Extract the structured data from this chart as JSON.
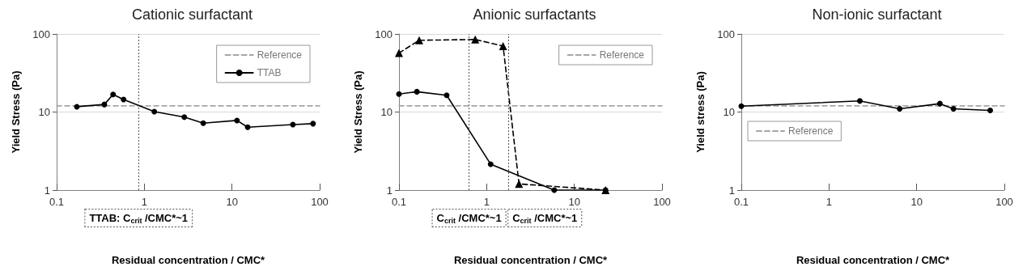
{
  "chart_data": [
    {
      "type": "line",
      "title": "Cationic surfactant",
      "xlabel": "Residual concentration / CMC*",
      "ylabel": "Yield Stress (Pa)",
      "log": "xy",
      "xlim": [
        0.1,
        100
      ],
      "xticks": [
        0.1,
        1,
        10,
        100
      ],
      "ylim": [
        1,
        100
      ],
      "yticks": [
        1,
        10,
        100
      ],
      "grid": "y",
      "legend": "top right",
      "marker": "circle",
      "line_style": "solid",
      "series": [
        {
          "name": "Reference",
          "color": "#a6a6a6",
          "x": [
            0.1,
            100
          ],
          "values": [
            12,
            12
          ],
          "line_style": "dashed",
          "marker": "none"
        },
        {
          "name": "TTAB",
          "color": "#000000",
          "x": [
            0.17,
            0.35,
            0.44,
            0.58,
            1.3,
            2.86,
            4.7,
            11.4,
            15.1,
            49.5,
            84
          ],
          "values": [
            11.7,
            12.5,
            16.8,
            14.5,
            10.1,
            8.6,
            7.2,
            7.8,
            6.4,
            6.9,
            7.1
          ]
        }
      ],
      "ref_lines": [
        {
          "axis": "x",
          "value": 0.86,
          "label": "TTAB: C$_{crit}$ /CMC*~1",
          "color": "#555555",
          "line_style": "dotted"
        }
      ]
    },
    {
      "type": "line",
      "title": "Anionic surfactants",
      "xlabel": "Residual concentration / CMC*",
      "ylabel": "Yield Stress (Pa)",
      "log": "xy",
      "xlim": [
        0.1,
        100
      ],
      "xticks": [
        0.1,
        1,
        10,
        100
      ],
      "ylim": [
        1,
        100
      ],
      "yticks": [
        1,
        10,
        100
      ],
      "grid": "y",
      "legend": "top right",
      "marker": "circle",
      "line_style": "solid",
      "series": [
        {
          "name": "Reference",
          "color": "#a6a6a6",
          "x": [
            0.1,
            100
          ],
          "values": [
            12,
            12
          ],
          "line_style": "dashed",
          "marker": "none"
        },
        {
          "color": "#000000",
          "x": [
            0.1,
            0.16,
            0.35,
            1.11,
            5.9,
            22.7
          ],
          "values": [
            17,
            18.2,
            16.4,
            2.15,
            1.0,
            1.0
          ]
        },
        {
          "color": "#000000",
          "x": [
            0.1,
            0.17,
            0.74,
            1.54,
            2.34,
            22.7
          ],
          "values": [
            57,
            83,
            85,
            70,
            1.2,
            1.0
          ],
          "line_style": "dashed",
          "marker": "triangle"
        }
      ],
      "ref_lines": [
        {
          "axis": "x",
          "value": 0.63,
          "label": "C$_{crit}$ /CMC*~1",
          "color": "#555555",
          "line_style": "dotted"
        },
        {
          "axis": "x",
          "value": 1.77,
          "label": "C$_{crit}$ /CMC*~1",
          "color": "#555555",
          "line_style": "dotted"
        }
      ]
    },
    {
      "type": "line",
      "title": "Non-ionic surfactant",
      "xlabel": "Residual concentration / CMC*",
      "ylabel": "Yield stress (Pa)",
      "log": "xy",
      "xlim": [
        0.1,
        100
      ],
      "xticks": [
        0.1,
        1,
        10,
        100
      ],
      "ylim": [
        1,
        100
      ],
      "yticks": [
        1,
        10,
        100
      ],
      "grid": "y",
      "legend": "left",
      "marker": "circle",
      "line_style": "solid",
      "series": [
        {
          "name": "Reference",
          "color": "#a6a6a6",
          "x": [
            0.1,
            100
          ],
          "values": [
            12,
            12
          ],
          "line_style": "dashed",
          "marker": "none"
        },
        {
          "color": "#000000",
          "x": [
            0.1,
            2.25,
            6.4,
            18.4,
            26.3,
            69
          ],
          "values": [
            11.9,
            13.9,
            11.0,
            12.8,
            11.0,
            10.5
          ]
        }
      ]
    }
  ]
}
